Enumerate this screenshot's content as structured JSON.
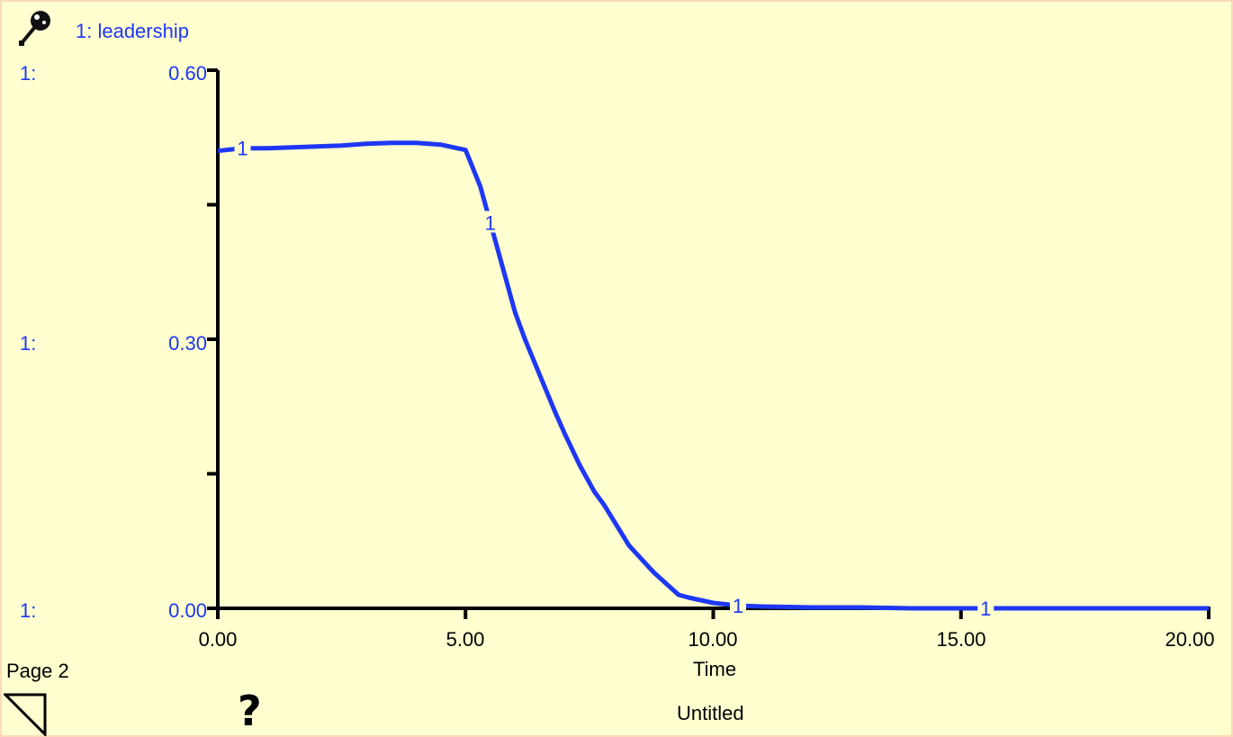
{
  "legend": {
    "entry": "1: leadership"
  },
  "y_axis": {
    "scale_prefix": "1:",
    "tick_labels": [
      "0.60",
      "0.30",
      "0.00"
    ]
  },
  "x_axis": {
    "label": "Time",
    "tick_labels": [
      "0.00",
      "5.00",
      "10.00",
      "15.00",
      "20.00"
    ]
  },
  "footer": {
    "page_label": "Page 2",
    "help_symbol": "?",
    "document_title": "Untitled"
  },
  "icons": {
    "pin": "pin-icon",
    "corner": "page-corner-icon",
    "help": "question-mark-icon"
  },
  "colors": {
    "series": "#1e37f5",
    "background": "#ffffd0",
    "border": "#fbd9b8",
    "axis": "#000000"
  },
  "chart_data": {
    "type": "line",
    "title": "",
    "xlabel": "Time",
    "ylabel": "",
    "xlim": [
      0,
      20
    ],
    "ylim": [
      0,
      0.6
    ],
    "y_ticks": [
      0,
      0.15,
      0.3,
      0.45,
      0.6
    ],
    "x_ticks": [
      0,
      5,
      10,
      15,
      20
    ],
    "grid": false,
    "legend_position": "top-left",
    "series": [
      {
        "name": "1: leadership",
        "marker_label": "1",
        "marker_x": [
          0.5,
          5.5,
          10.5,
          15.5
        ],
        "x": [
          0,
          0.5,
          1,
          1.5,
          2,
          2.5,
          3,
          3.5,
          4,
          4.5,
          5,
          5.3,
          5.5,
          5.8,
          6,
          6.2,
          6.5,
          6.8,
          7,
          7.3,
          7.6,
          7.8,
          8,
          8.3,
          8.6,
          8.8,
          9,
          9.3,
          9.5,
          10,
          10.5,
          11,
          12,
          13,
          14,
          15,
          16,
          17,
          18,
          19,
          20
        ],
        "y": [
          0.51,
          0.513,
          0.513,
          0.514,
          0.515,
          0.516,
          0.518,
          0.519,
          0.519,
          0.517,
          0.511,
          0.47,
          0.43,
          0.37,
          0.33,
          0.3,
          0.26,
          0.22,
          0.195,
          0.16,
          0.13,
          0.115,
          0.097,
          0.07,
          0.052,
          0.04,
          0.03,
          0.015,
          0.012,
          0.006,
          0.003,
          0.002,
          0.001,
          0.001,
          0,
          0,
          0,
          0,
          0,
          0,
          0
        ]
      }
    ]
  }
}
